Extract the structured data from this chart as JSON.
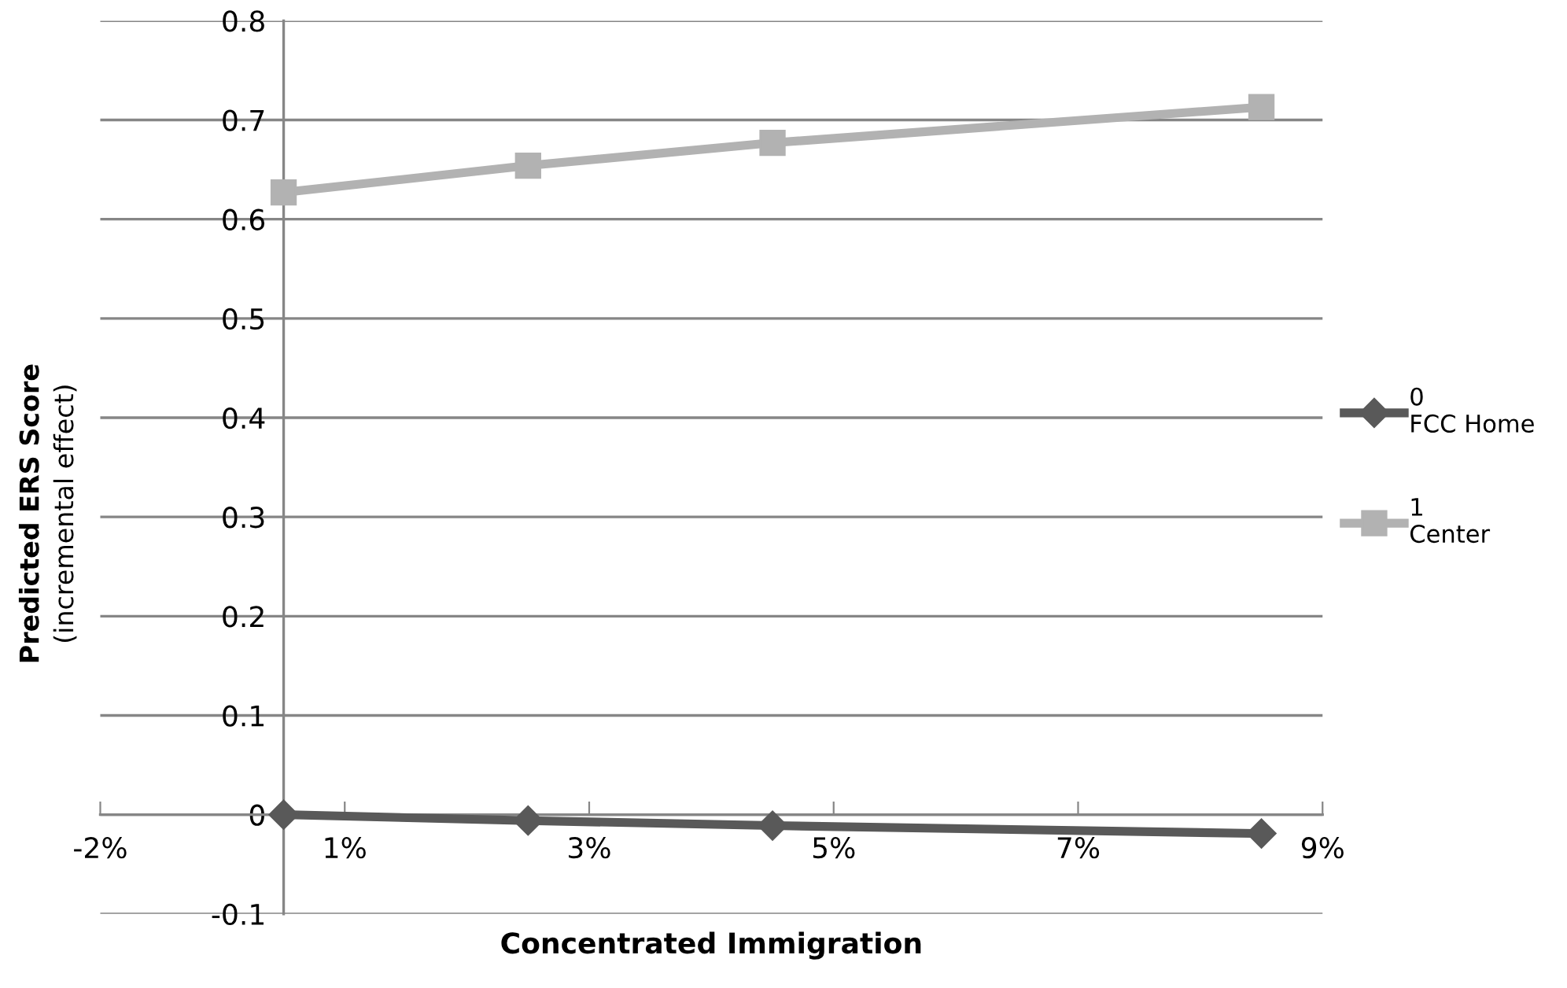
{
  "chart_data": {
    "type": "line",
    "xlabel": "Concentrated Immigration",
    "ylabel": "Predicted ERS Score\n(incremental effect)",
    "x": [
      0,
      2,
      4,
      8
    ],
    "series": [
      {
        "name": "0\nFCC Home",
        "color": "#595959",
        "marker": "diamond",
        "values": [
          0,
          -0.006,
          -0.011,
          -0.019
        ]
      },
      {
        "name": "1\nCenter",
        "color": "#b2b2b2",
        "marker": "square",
        "values": [
          0.627,
          0.654,
          0.677,
          0.713
        ]
      }
    ],
    "xlim": [
      -1.5,
      8.5
    ],
    "xticks": [
      {
        "value": -1.5,
        "label": "-2%"
      },
      {
        "value": 0.5,
        "label": "1%"
      },
      {
        "value": 2.5,
        "label": "3%"
      },
      {
        "value": 4.5,
        "label": "5%"
      },
      {
        "value": 6.5,
        "label": "7%"
      },
      {
        "value": 8.5,
        "label": "9%"
      }
    ],
    "ylim": [
      -0.1,
      0.8
    ],
    "yticks": [
      -0.1,
      0,
      0.1,
      0.2,
      0.3,
      0.4,
      0.5,
      0.6,
      0.7,
      0.8
    ],
    "grid": "y",
    "legend": "right",
    "line_style": "solid"
  }
}
